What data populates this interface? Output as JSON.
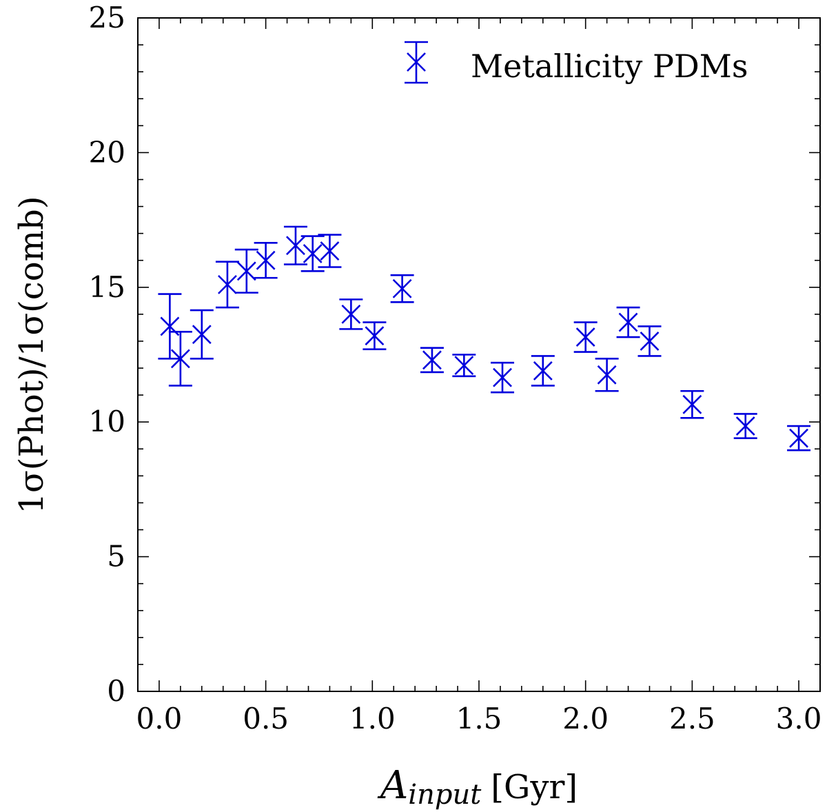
{
  "chart_data": {
    "type": "scatter",
    "title": "",
    "xlabel": {
      "main": "A",
      "sub": "input",
      "unit": "[Gyr]"
    },
    "ylabel": "1σ(Phot)/1σ(comb)",
    "xlim": [
      -0.1,
      3.1
    ],
    "ylim": [
      0,
      25
    ],
    "xticks": [
      "0.0",
      "0.5",
      "1.0",
      "1.5",
      "2.0",
      "2.5",
      "3.0"
    ],
    "xtick_values": [
      0,
      0.5,
      1.0,
      1.5,
      2.0,
      2.5,
      3.0
    ],
    "yticks": [
      "0",
      "5",
      "10",
      "15",
      "20",
      "25"
    ],
    "ytick_values": [
      0,
      5,
      10,
      15,
      20,
      25
    ],
    "marker_color": "#0000dd",
    "legend": {
      "label": "Metallicity PDMs",
      "position": "top-right"
    },
    "series": [
      {
        "name": "Metallicity PDMs",
        "points": [
          {
            "x": 0.05,
            "y": 13.55,
            "err": 1.2
          },
          {
            "x": 0.1,
            "y": 12.35,
            "err": 1.0
          },
          {
            "x": 0.2,
            "y": 13.25,
            "err": 0.9
          },
          {
            "x": 0.32,
            "y": 15.1,
            "err": 0.85
          },
          {
            "x": 0.41,
            "y": 15.6,
            "err": 0.8
          },
          {
            "x": 0.5,
            "y": 16.0,
            "err": 0.65
          },
          {
            "x": 0.64,
            "y": 16.55,
            "err": 0.7
          },
          {
            "x": 0.72,
            "y": 16.25,
            "err": 0.65
          },
          {
            "x": 0.8,
            "y": 16.35,
            "err": 0.6
          },
          {
            "x": 0.9,
            "y": 14.0,
            "err": 0.55
          },
          {
            "x": 1.01,
            "y": 13.2,
            "err": 0.5
          },
          {
            "x": 1.14,
            "y": 14.95,
            "err": 0.5
          },
          {
            "x": 1.28,
            "y": 12.3,
            "err": 0.45
          },
          {
            "x": 1.43,
            "y": 12.1,
            "err": 0.4
          },
          {
            "x": 1.61,
            "y": 11.65,
            "err": 0.55
          },
          {
            "x": 1.8,
            "y": 11.9,
            "err": 0.55
          },
          {
            "x": 2.0,
            "y": 13.15,
            "err": 0.55
          },
          {
            "x": 2.1,
            "y": 11.75,
            "err": 0.6
          },
          {
            "x": 2.2,
            "y": 13.7,
            "err": 0.55
          },
          {
            "x": 2.3,
            "y": 13.0,
            "err": 0.55
          },
          {
            "x": 2.5,
            "y": 10.65,
            "err": 0.5
          },
          {
            "x": 2.75,
            "y": 9.85,
            "err": 0.45
          },
          {
            "x": 3.0,
            "y": 9.4,
            "err": 0.45
          }
        ]
      }
    ]
  }
}
